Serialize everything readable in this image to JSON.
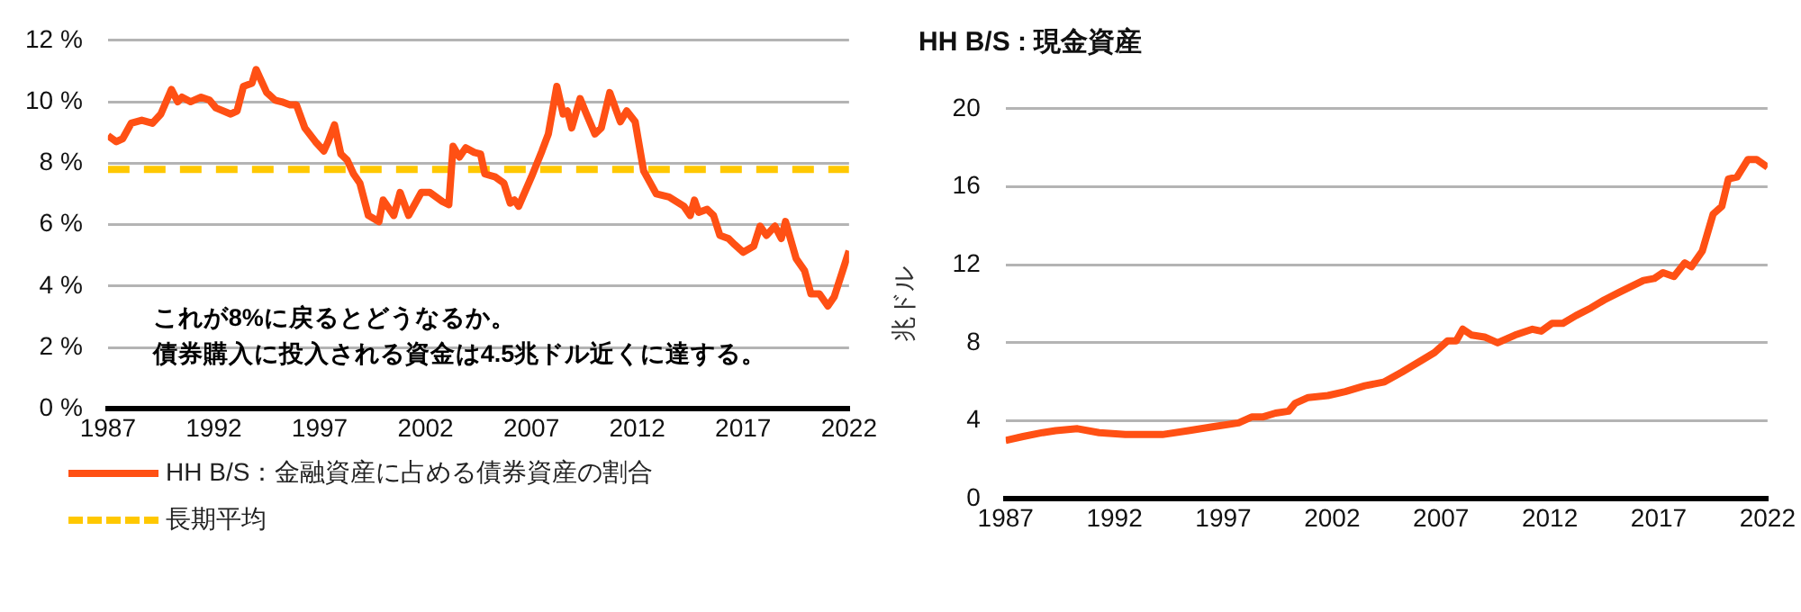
{
  "chart_data": [
    {
      "type": "line",
      "xlim": [
        1987,
        2022
      ],
      "xticks": [
        1987,
        1992,
        1997,
        2002,
        2007,
        2012,
        2017,
        2022
      ],
      "ylim": [
        0,
        12
      ],
      "yticks": [
        {
          "value": 0,
          "label": "0 %"
        },
        {
          "value": 2,
          "label": "2 %"
        },
        {
          "value": 4,
          "label": "4 %"
        },
        {
          "value": 6,
          "label": "6 %"
        },
        {
          "value": 8,
          "label": "8 %"
        },
        {
          "value": 10,
          "label": "10 %"
        },
        {
          "value": 12,
          "label": "12 %"
        }
      ],
      "grid": "y",
      "legend": "bottom",
      "annotations": [
        "これが8%に戻るとどうなるか。",
        "債券購入に投入される資金は4.5兆ドル近くに達する。"
      ],
      "series": [
        {
          "name": "HH B/S：金融資産に占める債券資産の割合",
          "color": "#ff5014",
          "line_style": "solid",
          "x": [
            1987,
            1987.4,
            1987.7,
            1988.1,
            1988.6,
            1989.1,
            1989.5,
            1990.0,
            1990.3,
            1990.5,
            1990.9,
            1991.4,
            1991.8,
            1992.1,
            1992.8,
            1993.1,
            1993.4,
            1993.8,
            1994.0,
            1994.5,
            1994.9,
            1995.2,
            1995.6,
            1995.9,
            1996.3,
            1996.8,
            1997.2,
            1997.4,
            1997.7,
            1998.0,
            1998.3,
            1998.6,
            1998.9,
            1999.3,
            1999.8,
            2000.0,
            2000.5,
            2000.8,
            2001.2,
            2001.8,
            2002.2,
            2002.8,
            2003.1,
            2003.3,
            2003.6,
            2003.9,
            2004.3,
            2004.6,
            2004.8,
            2005.3,
            2005.7,
            2006.0,
            2006.2,
            2006.4,
            2007.0,
            2007.5,
            2007.8,
            2008.2,
            2008.5,
            2008.7,
            2008.9,
            2009.3,
            2009.6,
            2010.0,
            2010.3,
            2010.7,
            2011.2,
            2011.5,
            2011.9,
            2012.3,
            2012.9,
            2013.5,
            2014.2,
            2014.5,
            2014.7,
            2014.9,
            2015.3,
            2015.6,
            2015.9,
            2016.3,
            2016.6,
            2017.0,
            2017.5,
            2017.8,
            2018.1,
            2018.5,
            2018.8,
            2019.0,
            2019.5,
            2019.9,
            2020.2,
            2020.6,
            2021.0,
            2021.3,
            2021.7,
            2022.0
          ],
          "values": [
            8.9,
            8.7,
            8.8,
            9.3,
            9.4,
            9.3,
            9.6,
            10.4,
            10.0,
            10.15,
            10.0,
            10.15,
            10.05,
            9.8,
            9.6,
            9.7,
            10.5,
            10.6,
            11.05,
            10.3,
            10.05,
            10.0,
            9.9,
            9.9,
            9.15,
            8.7,
            8.4,
            8.7,
            9.25,
            8.3,
            8.1,
            7.65,
            7.35,
            6.3,
            6.1,
            6.8,
            6.3,
            7.05,
            6.3,
            7.05,
            7.05,
            6.75,
            6.65,
            8.55,
            8.2,
            8.5,
            8.35,
            8.3,
            7.65,
            7.55,
            7.35,
            6.7,
            6.8,
            6.6,
            7.55,
            8.4,
            8.95,
            10.5,
            9.6,
            9.7,
            9.15,
            10.1,
            9.6,
            8.95,
            9.15,
            10.3,
            9.35,
            9.7,
            9.35,
            7.75,
            7.0,
            6.9,
            6.6,
            6.3,
            6.8,
            6.4,
            6.5,
            6.3,
            5.65,
            5.55,
            5.35,
            5.1,
            5.3,
            5.95,
            5.65,
            5.95,
            5.55,
            6.1,
            4.9,
            4.5,
            3.75,
            3.75,
            3.35,
            3.65,
            4.5,
            5.15
          ]
        },
        {
          "name": "長期平均",
          "color": "#ffc800",
          "line_style": "dashed",
          "x": [
            1987,
            2022
          ],
          "values": [
            7.8,
            7.8
          ]
        }
      ]
    },
    {
      "type": "line",
      "title": "HH B/S : 現金資産",
      "ylabel": "兆ドル",
      "xlim": [
        1987,
        2022
      ],
      "xticks": [
        1987,
        1992,
        1997,
        2002,
        2007,
        2012,
        2017,
        2022
      ],
      "ylim": [
        0,
        20
      ],
      "yticks": [
        0,
        4,
        8,
        12,
        16,
        20
      ],
      "grid": "y",
      "legend": false,
      "series": [
        {
          "color": "#ff5014",
          "x": [
            1987,
            1987.8,
            1988.7,
            1989.3,
            1990.3,
            1991.3,
            1992.5,
            1994.2,
            1995.4,
            1996.5,
            1997.7,
            1998.3,
            1998.8,
            1999.4,
            2000.0,
            2000.3,
            2000.9,
            2001.8,
            2002.6,
            2003.5,
            2004.4,
            2005.2,
            2006.1,
            2006.7,
            2007.3,
            2007.7,
            2008.0,
            2008.4,
            2009.0,
            2009.6,
            2010.4,
            2011.2,
            2011.6,
            2012.1,
            2012.6,
            2013.2,
            2013.9,
            2014.5,
            2015.2,
            2016.3,
            2016.8,
            2017.2,
            2017.7,
            2018.2,
            2018.5,
            2019.0,
            2019.5,
            2019.9,
            2020.2,
            2020.6,
            2021.1,
            2021.5,
            2022.0
          ],
          "values": [
            3.0,
            3.2,
            3.4,
            3.5,
            3.6,
            3.4,
            3.3,
            3.3,
            3.5,
            3.7,
            3.9,
            4.2,
            4.2,
            4.4,
            4.5,
            4.9,
            5.2,
            5.3,
            5.5,
            5.8,
            6.0,
            6.5,
            7.1,
            7.5,
            8.1,
            8.1,
            8.7,
            8.4,
            8.3,
            8.0,
            8.4,
            8.7,
            8.6,
            9.0,
            9.0,
            9.4,
            9.8,
            10.2,
            10.6,
            11.2,
            11.3,
            11.6,
            11.4,
            12.1,
            11.9,
            12.7,
            14.6,
            15.0,
            16.4,
            16.5,
            17.4,
            17.4,
            17.0
          ]
        }
      ]
    }
  ]
}
